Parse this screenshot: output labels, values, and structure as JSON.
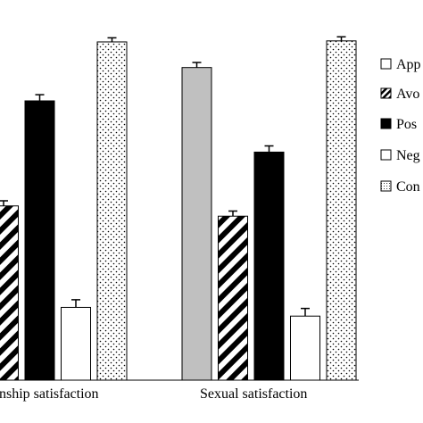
{
  "chart_data": {
    "type": "bar",
    "categories": [
      "Relationship satisfaction",
      "Sexual satisfaction"
    ],
    "series": [
      {
        "name": "Approach",
        "color": "#c0c0c0",
        "pattern": "solid-gray",
        "values": [
          null,
          6.1
        ],
        "errors": [
          null,
          0.1
        ]
      },
      {
        "name": "Avoidance",
        "color": "#000000",
        "pattern": "diagonal-stripes",
        "values": [
          3.4,
          3.2
        ],
        "errors": [
          0.1,
          0.1
        ]
      },
      {
        "name": "Positive",
        "color": "#000000",
        "pattern": "solid-black",
        "values": [
          5.45,
          4.45
        ],
        "errors": [
          0.12,
          0.12
        ]
      },
      {
        "name": "Negative",
        "color": "#ffffff",
        "pattern": "open-white",
        "values": [
          1.42,
          1.25
        ],
        "errors": [
          0.15,
          0.15
        ]
      },
      {
        "name": "Control",
        "color": "#ffffff",
        "pattern": "dots",
        "values": [
          6.6,
          6.62
        ],
        "errors": [
          0.08,
          0.08
        ]
      }
    ],
    "legend_labels": [
      "App",
      "Avo",
      "Pos",
      "Neg",
      "Con"
    ],
    "category_labels": [
      "nship satisfaction",
      "Sexual satisfaction"
    ],
    "ylim": [
      0,
      7
    ],
    "grid": false,
    "legend_position": "right"
  }
}
